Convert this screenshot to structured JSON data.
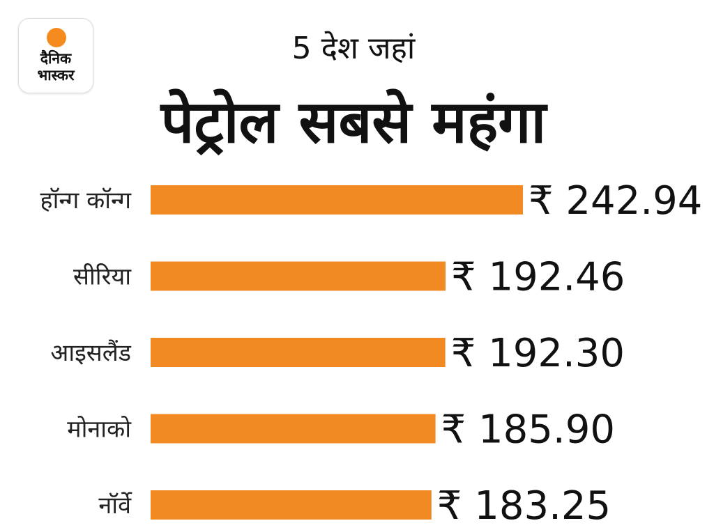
{
  "logo": {
    "line1": "दैनिक",
    "line2": "भास्कर",
    "sun_color": "#f58a1f"
  },
  "header": {
    "subtitle": "5 देश जहां",
    "title": "पेट्रोल सबसे महंगा"
  },
  "chart_data": {
    "type": "bar",
    "orientation": "horizontal",
    "title": "पेट्रोल सबसे महंगा",
    "subtitle": "5 देश जहां",
    "categories": [
      "हॉन्ग कॉन्ग",
      "सीरिया",
      "आइसलैंड",
      "मोनाको",
      "नॉर्वे"
    ],
    "values": [
      242.94,
      192.46,
      192.3,
      185.9,
      183.25
    ],
    "value_labels": [
      "₹ 242.94",
      "₹ 192.46",
      "₹ 192.30",
      "₹ 185.90",
      "₹ 183.25"
    ],
    "xlim": [
      0,
      242.94
    ],
    "bar_color": "#f28a24",
    "grid": false,
    "legend": "none"
  }
}
